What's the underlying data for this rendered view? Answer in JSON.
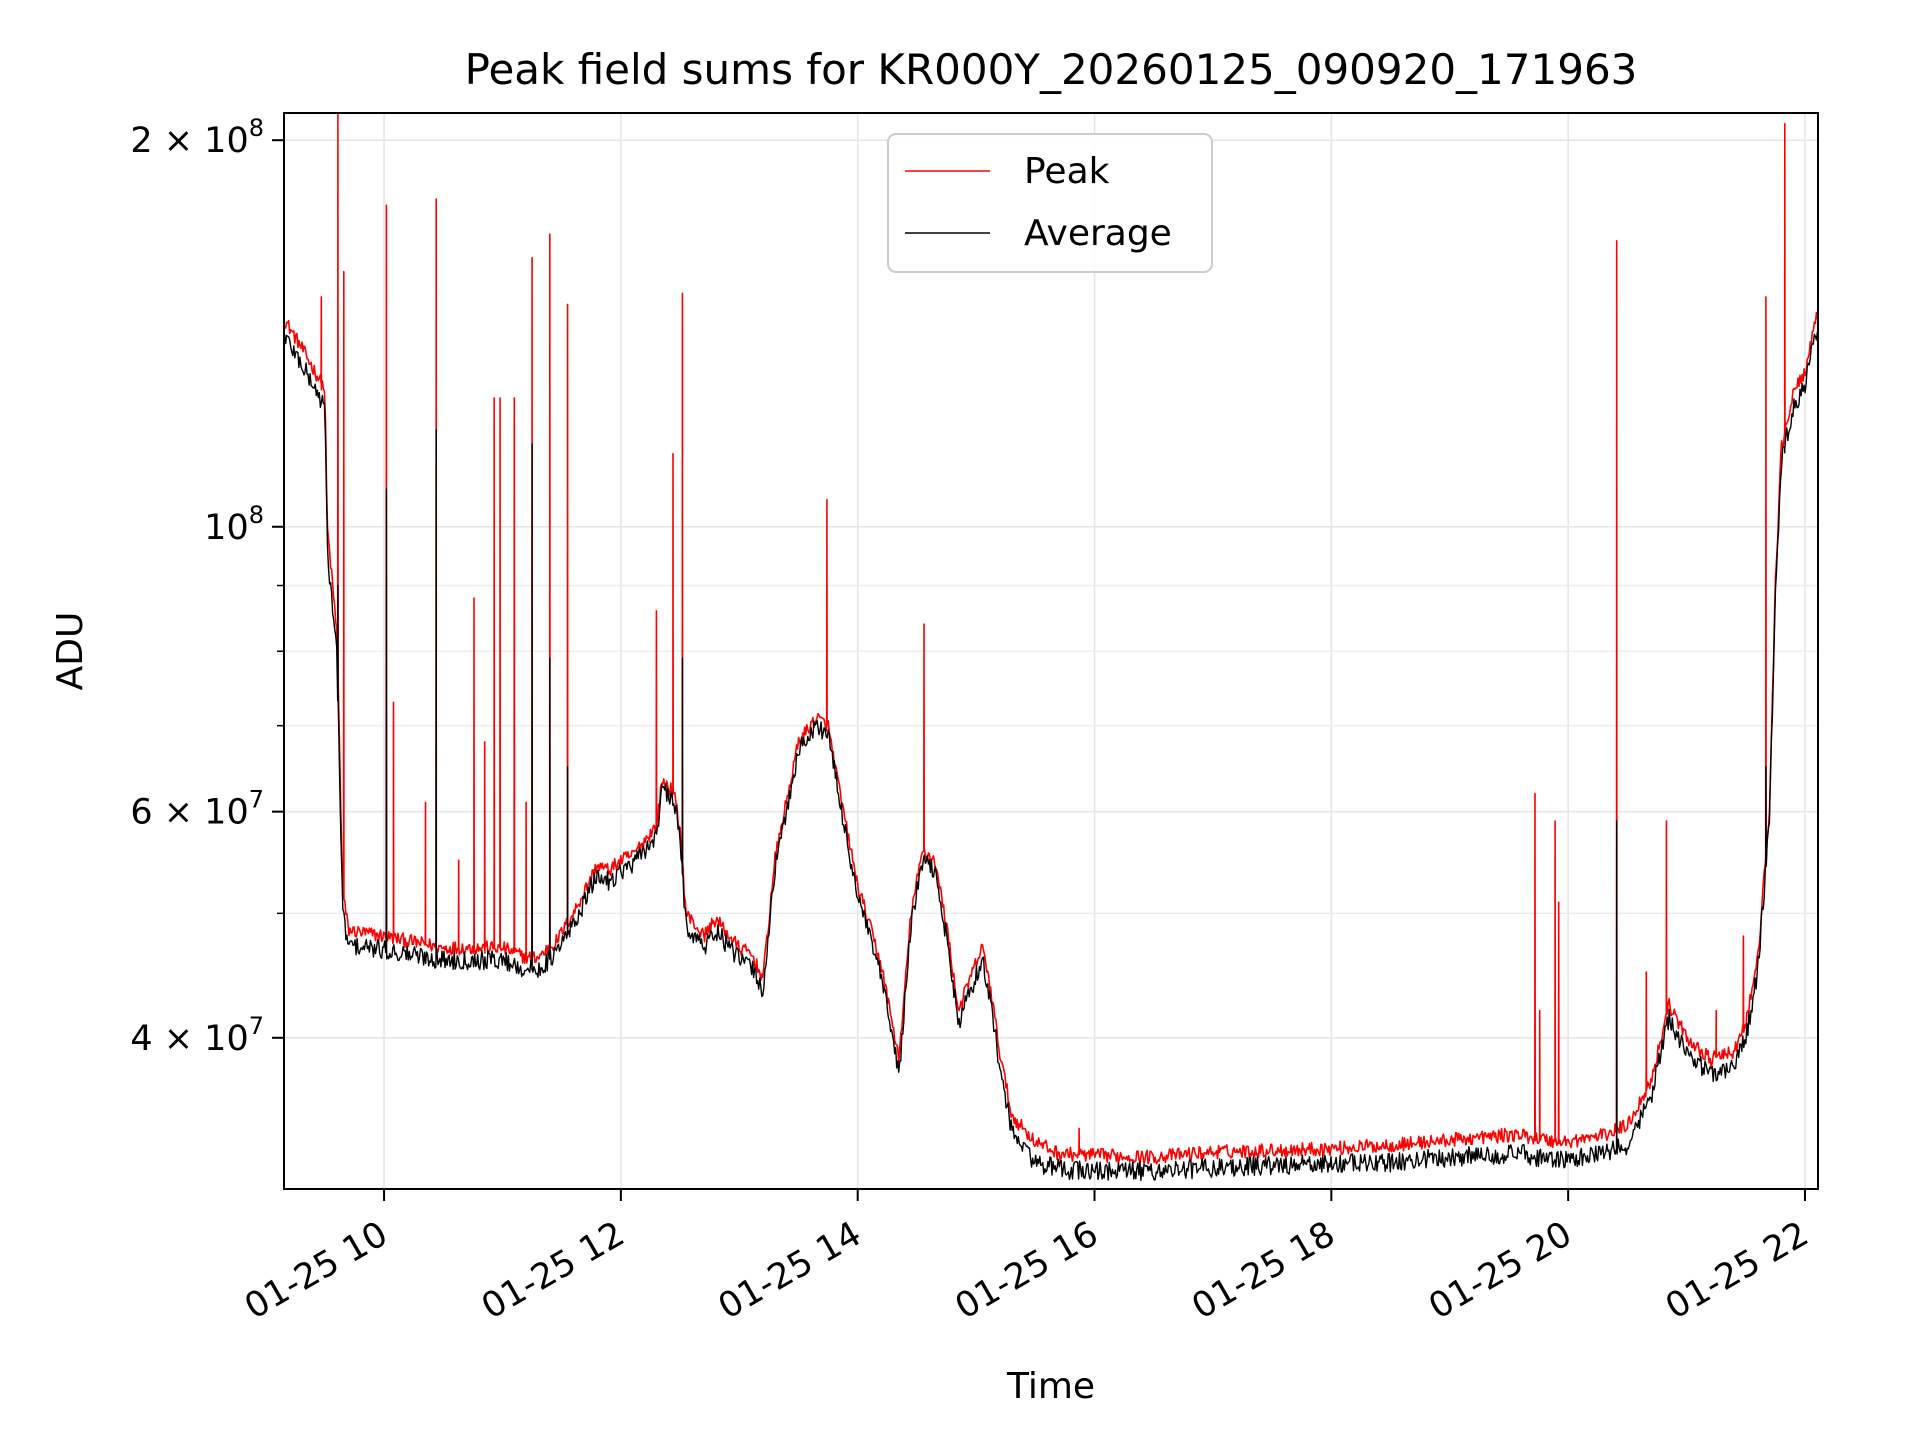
{
  "chart_data": {
    "type": "line",
    "title": "Peak field sums for KR000Y_20260125_090920_171963",
    "xlabel": "Time",
    "ylabel": "ADU",
    "y_scale": "log",
    "xlim_hours": [
      9.155,
      22.11
    ],
    "ylim": [
      30500000,
      210000000
    ],
    "grid": true,
    "legend_location": "upper center",
    "x_ticks": [
      {
        "hour": 10,
        "label": "01-25 10"
      },
      {
        "hour": 12,
        "label": "01-25 12"
      },
      {
        "hour": 14,
        "label": "01-25 14"
      },
      {
        "hour": 16,
        "label": "01-25 16"
      },
      {
        "hour": 18,
        "label": "01-25 18"
      },
      {
        "hour": 20,
        "label": "01-25 20"
      },
      {
        "hour": 22,
        "label": "01-25 22"
      }
    ],
    "y_ticks": [
      {
        "value": 40000000,
        "mant": "4",
        "exp": "7"
      },
      {
        "value": 60000000,
        "mant": "6",
        "exp": "7"
      },
      {
        "value": 100000000,
        "mant": "",
        "exp": "8"
      },
      {
        "value": 200000000,
        "mant": "2",
        "exp": "8"
      }
    ],
    "y_minor_ticks": [
      50000000,
      70000000,
      80000000,
      90000000
    ],
    "series": [
      {
        "name": "Peak",
        "color": "#ff0000",
        "x": [
          9.16,
          9.3,
          9.5,
          9.52,
          9.6,
          9.62,
          9.65,
          9.7,
          10.0,
          10.5,
          11.0,
          11.2,
          11.3,
          11.45,
          11.6,
          11.8,
          11.9,
          12.0,
          12.1,
          12.3,
          12.35,
          12.45,
          12.5,
          12.55,
          12.7,
          12.8,
          13.0,
          13.1,
          13.2,
          13.3,
          13.5,
          13.65,
          13.75,
          13.85,
          14.0,
          14.1,
          14.2,
          14.35,
          14.45,
          14.55,
          14.65,
          14.75,
          14.85,
          14.95,
          15.05,
          15.1,
          15.2,
          15.3,
          15.5,
          15.7,
          16.0,
          16.5,
          17.0,
          17.5,
          18.0,
          18.5,
          19.0,
          19.5,
          19.6,
          19.75,
          19.9,
          20.0,
          20.3,
          20.5,
          20.7,
          20.85,
          21.0,
          21.2,
          21.4,
          21.5,
          21.6,
          21.7,
          21.75,
          21.8,
          21.9,
          22.0,
          22.11
        ],
        "y": [
          145000000,
          138000000,
          128000000,
          100000000,
          83000000,
          70000000,
          52000000,
          48500000,
          48000000,
          47000000,
          47000000,
          46200000,
          46200000,
          47500000,
          50000000,
          54500000,
          54000000,
          55000000,
          55500000,
          58500000,
          63500000,
          62000000,
          58000000,
          50000000,
          48000000,
          49500000,
          47000000,
          46500000,
          44500000,
          55000000,
          68000000,
          71000000,
          70000000,
          62000000,
          52500000,
          49000000,
          45500000,
          38500000,
          50000000,
          56000000,
          55000000,
          49000000,
          42000000,
          44500000,
          47000000,
          45000000,
          39000000,
          34800000,
          33200000,
          32500000,
          32400000,
          32300000,
          32600000,
          32700000,
          32800000,
          33000000,
          33300000,
          33600000,
          33600000,
          33400000,
          33200000,
          33200000,
          33600000,
          34200000,
          37000000,
          42500000,
          40000000,
          38500000,
          39000000,
          41000000,
          46000000,
          60000000,
          90000000,
          115000000,
          127000000,
          132000000,
          147000000
        ]
      },
      {
        "name": "Average",
        "color": "#000000",
        "x": [
          9.16,
          9.3,
          9.5,
          9.52,
          9.6,
          9.62,
          9.65,
          9.7,
          10.0,
          10.5,
          11.0,
          11.2,
          11.3,
          11.45,
          11.6,
          11.8,
          11.9,
          12.0,
          12.1,
          12.3,
          12.35,
          12.45,
          12.5,
          12.55,
          12.7,
          12.8,
          13.0,
          13.1,
          13.2,
          13.3,
          13.5,
          13.65,
          13.75,
          13.85,
          14.0,
          14.1,
          14.2,
          14.35,
          14.45,
          14.55,
          14.65,
          14.75,
          14.85,
          14.95,
          15.05,
          15.1,
          15.2,
          15.3,
          15.5,
          15.7,
          16.0,
          16.5,
          17.0,
          17.5,
          18.0,
          18.5,
          19.0,
          19.5,
          19.6,
          19.75,
          19.9,
          20.0,
          20.3,
          20.5,
          20.7,
          20.85,
          21.0,
          21.2,
          21.4,
          21.5,
          21.6,
          21.7,
          21.75,
          21.8,
          21.9,
          22.0,
          22.11
        ],
        "y": [
          141000000,
          134000000,
          124000000,
          96000000,
          80000000,
          67000000,
          50000000,
          47200000,
          46800000,
          46000000,
          46000000,
          45200000,
          45200000,
          46500000,
          49000000,
          53500000,
          53000000,
          54000000,
          54500000,
          57500000,
          62500000,
          61000000,
          57000000,
          49000000,
          47000000,
          48500000,
          46000000,
          45500000,
          43500000,
          54000000,
          67000000,
          70000000,
          69000000,
          61000000,
          51500000,
          48000000,
          44500000,
          37500000,
          49000000,
          55000000,
          54000000,
          48000000,
          41000000,
          43500000,
          46000000,
          44000000,
          38000000,
          33800000,
          32000000,
          31600000,
          31500000,
          31500000,
          31700000,
          31800000,
          31900000,
          32000000,
          32300000,
          32500000,
          32500000,
          32300000,
          32100000,
          32100000,
          32500000,
          33000000,
          36000000,
          41500000,
          39000000,
          37500000,
          38000000,
          40000000,
          45000000,
          59000000,
          88000000,
          112000000,
          124000000,
          129000000,
          144000000
        ]
      }
    ],
    "peak_spikes": [
      {
        "x": 9.47,
        "y": 151000000
      },
      {
        "x": 9.61,
        "y": 212000000
      },
      {
        "x": 9.66,
        "y": 158000000
      },
      {
        "x": 10.02,
        "y": 178000000
      },
      {
        "x": 10.08,
        "y": 73000000
      },
      {
        "x": 10.35,
        "y": 61000000
      },
      {
        "x": 10.44,
        "y": 180000000
      },
      {
        "x": 10.63,
        "y": 55000000
      },
      {
        "x": 10.76,
        "y": 88000000
      },
      {
        "x": 10.85,
        "y": 68000000
      },
      {
        "x": 10.93,
        "y": 126000000
      },
      {
        "x": 10.98,
        "y": 126000000
      },
      {
        "x": 11.1,
        "y": 126000000
      },
      {
        "x": 11.2,
        "y": 61000000
      },
      {
        "x": 11.25,
        "y": 162000000
      },
      {
        "x": 11.4,
        "y": 169000000
      },
      {
        "x": 11.55,
        "y": 149000000
      },
      {
        "x": 12.3,
        "y": 86000000
      },
      {
        "x": 12.44,
        "y": 114000000
      },
      {
        "x": 12.52,
        "y": 152000000
      },
      {
        "x": 13.74,
        "y": 105000000
      },
      {
        "x": 14.56,
        "y": 84000000
      },
      {
        "x": 15.87,
        "y": 34000000
      },
      {
        "x": 19.72,
        "y": 62000000
      },
      {
        "x": 19.76,
        "y": 42000000
      },
      {
        "x": 19.89,
        "y": 59000000
      },
      {
        "x": 19.92,
        "y": 51000000
      },
      {
        "x": 20.41,
        "y": 167000000
      },
      {
        "x": 20.66,
        "y": 45000000
      },
      {
        "x": 20.83,
        "y": 59000000
      },
      {
        "x": 21.25,
        "y": 42000000
      },
      {
        "x": 21.48,
        "y": 48000000
      },
      {
        "x": 21.67,
        "y": 151000000
      },
      {
        "x": 21.83,
        "y": 206000000
      }
    ],
    "average_spikes": [
      {
        "x": 9.61,
        "y": 90000000
      },
      {
        "x": 10.02,
        "y": 107000000
      },
      {
        "x": 10.44,
        "y": 119000000
      },
      {
        "x": 11.25,
        "y": 116000000
      },
      {
        "x": 11.4,
        "y": 79000000
      },
      {
        "x": 11.55,
        "y": 65000000
      },
      {
        "x": 12.52,
        "y": 79000000
      },
      {
        "x": 20.41,
        "y": 59000000
      },
      {
        "x": 21.67,
        "y": 65000000
      },
      {
        "x": 21.83,
        "y": 115000000
      }
    ]
  }
}
